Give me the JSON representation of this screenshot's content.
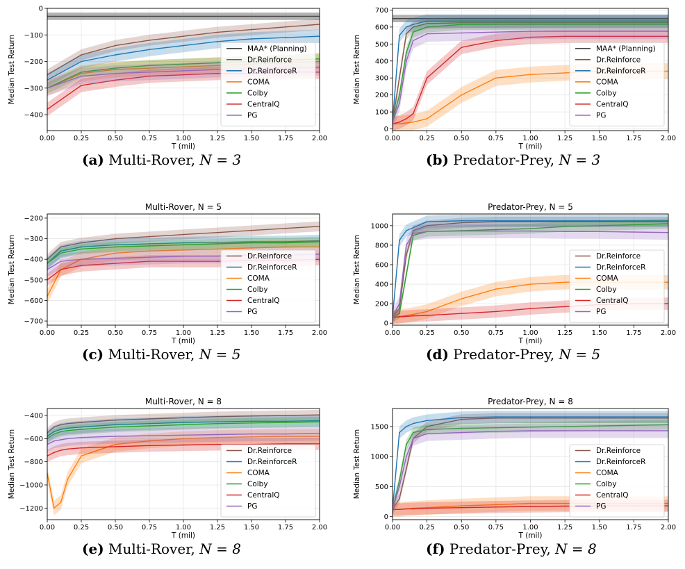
{
  "figure": {
    "xlabel": "T (mil)",
    "ylabel": "Median Test Return",
    "x_ticks": [
      "0.00",
      "0.25",
      "0.50",
      "0.75",
      "1.00",
      "1.25",
      "1.50",
      "1.75",
      "2.00"
    ],
    "colors": {
      "MAA* (Planning)": "#444444",
      "Dr.Reinforce": "#8c564b",
      "Dr.ReinforceR": "#1f77b4",
      "COMA": "#ff7f0e",
      "Colby": "#2ca02c",
      "CentralQ": "#d62728",
      "PG": "#9467bd"
    }
  },
  "chart_data": [
    {
      "id": "a",
      "type": "line",
      "caption": {
        "tag": "(a)",
        "text": "Multi-Rover,",
        "n": "N = 3"
      },
      "title": "",
      "xlabel": "T (mil)",
      "ylabel": "Median Test Return",
      "xlim": [
        0,
        2
      ],
      "ylim": [
        -460,
        0
      ],
      "y_ticks": [
        0,
        -100,
        -200,
        -300,
        -400
      ],
      "legend_position": "center-right",
      "legend": [
        "MAA* (Planning)",
        "Dr.Reinforce",
        "Dr.ReinforceR",
        "COMA",
        "Colby",
        "CentralQ",
        "PG"
      ],
      "x": [
        0,
        0.25,
        0.5,
        0.75,
        1,
        1.25,
        1.5,
        1.75,
        2
      ],
      "reference_line": {
        "name": "MAA* (Planning)",
        "value": -30
      },
      "series": [
        {
          "name": "Dr.Reinforce",
          "values": [
            -250,
            -175,
            -140,
            -120,
            -105,
            -90,
            -80,
            -70,
            -60
          ]
        },
        {
          "name": "Dr.ReinforceR",
          "values": [
            -270,
            -200,
            -175,
            -155,
            -140,
            -125,
            -115,
            -110,
            -105
          ]
        },
        {
          "name": "COMA",
          "values": [
            -300,
            -245,
            -230,
            -225,
            -220,
            -215,
            -210,
            -205,
            -200
          ]
        },
        {
          "name": "Colby",
          "values": [
            -300,
            -240,
            -225,
            -215,
            -210,
            -205,
            -200,
            -195,
            -190
          ]
        },
        {
          "name": "CentralQ",
          "values": [
            -380,
            -290,
            -270,
            -255,
            -250,
            -245,
            -245,
            -240,
            -240
          ]
        },
        {
          "name": "PG",
          "values": [
            -300,
            -255,
            -245,
            -240,
            -235,
            -230,
            -228,
            -225,
            -222
          ]
        }
      ]
    },
    {
      "id": "b",
      "type": "line",
      "caption": {
        "tag": "(b)",
        "text": "Predator-Prey,",
        "n": "N = 3"
      },
      "title": "",
      "xlabel": "T (mil)",
      "ylabel": "Median Test Return",
      "xlim": [
        0,
        2
      ],
      "ylim": [
        -10,
        710
      ],
      "y_ticks": [
        0,
        100,
        200,
        300,
        400,
        500,
        600,
        700
      ],
      "legend_position": "center-right",
      "legend": [
        "MAA* (Planning)",
        "Dr.Reinforce",
        "Dr.ReinforceR",
        "COMA",
        "Colby",
        "CentralQ",
        "PG"
      ],
      "x": [
        0,
        0.05,
        0.1,
        0.15,
        0.25,
        0.5,
        0.75,
        1,
        1.25,
        1.5,
        1.75,
        2
      ],
      "reference_line": {
        "name": "MAA* (Planning)",
        "value": 650
      },
      "series": [
        {
          "name": "Dr.Reinforce",
          "values": [
            40,
            300,
            560,
            600,
            620,
            625,
            625,
            625,
            625,
            625,
            625,
            625
          ]
        },
        {
          "name": "Dr.ReinforceR",
          "values": [
            40,
            550,
            600,
            615,
            635,
            635,
            635,
            635,
            635,
            635,
            635,
            635
          ]
        },
        {
          "name": "COMA",
          "values": [
            30,
            30,
            35,
            40,
            60,
            200,
            300,
            320,
            330,
            340,
            340,
            340
          ]
        },
        {
          "name": "Colby",
          "values": [
            40,
            200,
            450,
            570,
            600,
            615,
            615,
            615,
            615,
            615,
            615,
            615
          ]
        },
        {
          "name": "CentralQ",
          "values": [
            30,
            40,
            60,
            90,
            300,
            480,
            520,
            540,
            545,
            545,
            545,
            545
          ]
        },
        {
          "name": "PG",
          "values": [
            40,
            150,
            400,
            520,
            560,
            565,
            570,
            575,
            575,
            575,
            575,
            575
          ]
        }
      ]
    },
    {
      "id": "c",
      "type": "line",
      "caption": {
        "tag": "(c)",
        "text": "Multi-Rover,",
        "n": "N = 5"
      },
      "title": "Multi-Rover, N = 5",
      "xlabel": "T (mil)",
      "ylabel": "Median Test Return",
      "xlim": [
        0,
        2
      ],
      "ylim": [
        -720,
        -180
      ],
      "y_ticks": [
        -200,
        -300,
        -400,
        -500,
        -600,
        -700
      ],
      "legend_position": "lower-right",
      "legend": [
        "Dr.Reinforce",
        "Dr.ReinforceR",
        "COMA",
        "Colby",
        "CentralQ",
        "PG"
      ],
      "x": [
        0,
        0.1,
        0.25,
        0.5,
        0.75,
        1,
        1.25,
        1.5,
        1.75,
        2
      ],
      "series": [
        {
          "name": "Dr.Reinforce",
          "values": [
            -400,
            -340,
            -320,
            -300,
            -290,
            -280,
            -270,
            -260,
            -250,
            -240
          ]
        },
        {
          "name": "Dr.ReinforceR",
          "values": [
            -420,
            -360,
            -340,
            -330,
            -325,
            -320,
            -318,
            -315,
            -315,
            -310
          ]
        },
        {
          "name": "COMA",
          "values": [
            -580,
            -450,
            -400,
            -370,
            -360,
            -355,
            -350,
            -345,
            -340,
            -340
          ]
        },
        {
          "name": "Colby",
          "values": [
            -420,
            -370,
            -350,
            -340,
            -335,
            -330,
            -325,
            -320,
            -320,
            -315
          ]
        },
        {
          "name": "CentralQ",
          "values": [
            -500,
            -450,
            -430,
            -420,
            -410,
            -410,
            -410,
            -405,
            -405,
            -400
          ]
        },
        {
          "name": "PG",
          "values": [
            -450,
            -410,
            -400,
            -395,
            -390,
            -385,
            -385,
            -380,
            -380,
            -375
          ]
        }
      ]
    },
    {
      "id": "d",
      "type": "line",
      "caption": {
        "tag": "(d)",
        "text": "Predator-Prey,",
        "n": "N = 5"
      },
      "title": "Predator-Prey, N = 5",
      "xlabel": "T (mil)",
      "ylabel": "Median Test Return",
      "xlim": [
        0,
        2
      ],
      "ylim": [
        -20,
        1120
      ],
      "y_ticks": [
        0,
        200,
        400,
        600,
        800,
        1000
      ],
      "legend_position": "lower-right",
      "legend": [
        "Dr.Reinforce",
        "Dr.ReinforceR",
        "COMA",
        "Colby",
        "CentralQ",
        "PG"
      ],
      "x": [
        0,
        0.05,
        0.1,
        0.15,
        0.25,
        0.5,
        0.75,
        1,
        1.25,
        1.5,
        1.75,
        2
      ],
      "series": [
        {
          "name": "Dr.Reinforce",
          "values": [
            60,
            150,
            700,
            950,
            1000,
            1030,
            1040,
            1040,
            1040,
            1040,
            1040,
            1040
          ]
        },
        {
          "name": "Dr.ReinforceR",
          "values": [
            60,
            850,
            950,
            980,
            1040,
            1050,
            1050,
            1050,
            1050,
            1050,
            1050,
            1050
          ]
        },
        {
          "name": "COMA",
          "values": [
            60,
            70,
            80,
            90,
            120,
            250,
            350,
            400,
            420,
            420,
            420,
            420
          ]
        },
        {
          "name": "Colby",
          "values": [
            60,
            100,
            500,
            900,
            940,
            950,
            960,
            970,
            990,
            1000,
            1010,
            1020
          ]
        },
        {
          "name": "CentralQ",
          "values": [
            60,
            65,
            70,
            75,
            80,
            100,
            120,
            150,
            170,
            190,
            200,
            200
          ]
        },
        {
          "name": "PG",
          "values": [
            60,
            200,
            800,
            920,
            940,
            945,
            945,
            945,
            940,
            940,
            935,
            930
          ]
        }
      ]
    },
    {
      "id": "e",
      "type": "line",
      "caption": {
        "tag": "(e)",
        "text": "Multi-Rover,",
        "n": "N = 8"
      },
      "title": "Multi-Rover, N = 8",
      "xlabel": "T (mil)",
      "ylabel": "Median Test Return",
      "xlim": [
        0,
        2
      ],
      "ylim": [
        -1300,
        -340
      ],
      "y_ticks": [
        -400,
        -600,
        -800,
        -1000,
        -1200
      ],
      "legend_position": "lower-right",
      "legend": [
        "Dr.Reinforce",
        "Dr.ReinforceR",
        "COMA",
        "Colby",
        "CentralQ",
        "PG"
      ],
      "x": [
        0,
        0.05,
        0.1,
        0.15,
        0.25,
        0.5,
        0.75,
        1,
        1.25,
        1.5,
        1.75,
        2
      ],
      "series": [
        {
          "name": "Dr.Reinforce",
          "values": [
            -550,
            -500,
            -480,
            -470,
            -460,
            -440,
            -430,
            -420,
            -410,
            -405,
            -400,
            -395
          ]
        },
        {
          "name": "Dr.ReinforceR",
          "values": [
            -580,
            -540,
            -520,
            -510,
            -500,
            -480,
            -470,
            -460,
            -455,
            -450,
            -450,
            -445
          ]
        },
        {
          "name": "COMA",
          "values": [
            -900,
            -1200,
            -1150,
            -950,
            -750,
            -650,
            -620,
            -600,
            -590,
            -585,
            -580,
            -580
          ]
        },
        {
          "name": "Colby",
          "values": [
            -600,
            -560,
            -540,
            -530,
            -520,
            -500,
            -490,
            -480,
            -470,
            -465,
            -460,
            -455
          ]
        },
        {
          "name": "CentralQ",
          "values": [
            -750,
            -720,
            -700,
            -690,
            -680,
            -670,
            -660,
            -655,
            -650,
            -650,
            -645,
            -645
          ]
        },
        {
          "name": "PG",
          "values": [
            -650,
            -620,
            -610,
            -600,
            -590,
            -580,
            -575,
            -570,
            -565,
            -560,
            -560,
            -555
          ]
        }
      ]
    },
    {
      "id": "f",
      "type": "line",
      "caption": {
        "tag": "(f)",
        "text": "Predator-Prey,",
        "n": "N = 8"
      },
      "title": "Predator-Prey, N = 8",
      "xlabel": "T (mil)",
      "ylabel": "Median Test Return",
      "xlim": [
        0,
        2
      ],
      "ylim": [
        -50,
        1800
      ],
      "y_ticks": [
        0,
        500,
        1000,
        1500
      ],
      "legend_position": "lower-right",
      "legend": [
        "Dr.Reinforce",
        "Dr.ReinforceR",
        "COMA",
        "Colby",
        "CentralQ",
        "PG"
      ],
      "x": [
        0,
        0.05,
        0.1,
        0.15,
        0.25,
        0.5,
        0.75,
        1,
        1.25,
        1.5,
        1.75,
        2
      ],
      "series": [
        {
          "name": "Dr.Reinforce",
          "values": [
            120,
            300,
            800,
            1300,
            1500,
            1620,
            1640,
            1640,
            1640,
            1640,
            1640,
            1640
          ]
        },
        {
          "name": "Dr.ReinforceR",
          "values": [
            120,
            1400,
            1500,
            1550,
            1600,
            1650,
            1660,
            1660,
            1660,
            1660,
            1660,
            1660
          ]
        },
        {
          "name": "COMA",
          "values": [
            120,
            120,
            130,
            140,
            150,
            180,
            200,
            220,
            220,
            220,
            220,
            220
          ]
        },
        {
          "name": "Colby",
          "values": [
            120,
            600,
            1200,
            1400,
            1450,
            1470,
            1480,
            1490,
            1500,
            1510,
            1520,
            1530
          ]
        },
        {
          "name": "CentralQ",
          "values": [
            120,
            120,
            130,
            130,
            140,
            150,
            160,
            170,
            175,
            180,
            180,
            180
          ]
        },
        {
          "name": "PG",
          "values": [
            120,
            500,
            1000,
            1300,
            1380,
            1400,
            1420,
            1430,
            1430,
            1430,
            1430,
            1430
          ]
        }
      ]
    }
  ]
}
